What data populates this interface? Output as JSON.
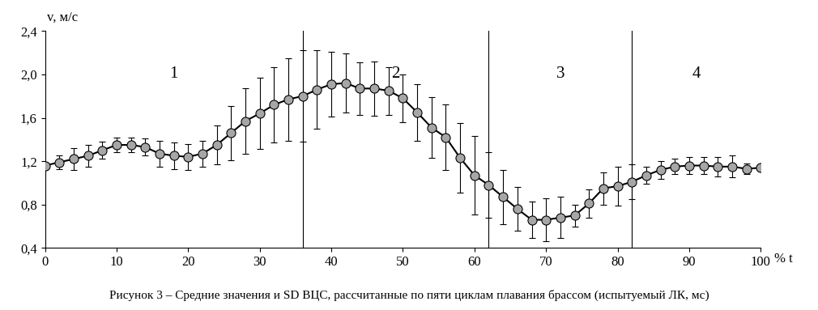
{
  "chart_data": {
    "type": "line",
    "caption": "Рисунок 3 – Средние значения и SD ВЦС, рассчитанные по пяти циклам плавания брассом (испытуемый ЛК, мс)",
    "y_label": "v, м/с",
    "x_label": "% t",
    "x": [
      0,
      2,
      4,
      6,
      8,
      10,
      12,
      14,
      16,
      18,
      20,
      22,
      24,
      26,
      28,
      30,
      32,
      34,
      36,
      38,
      40,
      42,
      44,
      46,
      48,
      50,
      52,
      54,
      56,
      58,
      60,
      62,
      64,
      66,
      68,
      70,
      72,
      74,
      76,
      78,
      80,
      82,
      84,
      86,
      88,
      90,
      92,
      94,
      96,
      98,
      100
    ],
    "values": [
      1.16,
      1.19,
      1.22,
      1.25,
      1.3,
      1.35,
      1.35,
      1.33,
      1.27,
      1.25,
      1.24,
      1.27,
      1.35,
      1.46,
      1.57,
      1.64,
      1.72,
      1.77,
      1.8,
      1.86,
      1.91,
      1.92,
      1.87,
      1.87,
      1.85,
      1.78,
      1.65,
      1.51,
      1.42,
      1.23,
      1.07,
      0.98,
      0.87,
      0.76,
      0.66,
      0.66,
      0.68,
      0.7,
      0.81,
      0.95,
      0.97,
      1.01,
      1.07,
      1.12,
      1.15,
      1.16,
      1.16,
      1.15,
      1.15,
      1.13,
      1.14
    ],
    "sd": [
      0.0,
      0.06,
      0.1,
      0.1,
      0.08,
      0.07,
      0.07,
      0.08,
      0.12,
      0.12,
      0.12,
      0.12,
      0.18,
      0.25,
      0.3,
      0.33,
      0.35,
      0.38,
      0.42,
      0.36,
      0.3,
      0.27,
      0.24,
      0.25,
      0.22,
      0.22,
      0.26,
      0.28,
      0.3,
      0.32,
      0.36,
      0.3,
      0.25,
      0.2,
      0.17,
      0.2,
      0.19,
      0.1,
      0.13,
      0.15,
      0.18,
      0.16,
      0.08,
      0.08,
      0.07,
      0.08,
      0.08,
      0.09,
      0.1,
      0.05,
      0.0
    ],
    "color": "#000000",
    "marker": "o",
    "phase_lines": [
      36,
      62,
      82
    ],
    "phase_labels": [
      "1",
      "2",
      "3",
      "4"
    ],
    "xlim": [
      0,
      100
    ],
    "xticks": [
      0,
      10,
      20,
      30,
      40,
      50,
      60,
      70,
      80,
      90,
      100
    ],
    "ylim": [
      0.4,
      2.4
    ],
    "yticks": [
      {
        "value": 0.4,
        "label": "0,4"
      },
      {
        "value": 0.8,
        "label": "0,8"
      },
      {
        "value": 1.2,
        "label": "1,2"
      },
      {
        "value": 1.6,
        "label": "1,6"
      },
      {
        "value": 2.0,
        "label": "2,0"
      },
      {
        "value": 2.4,
        "label": "2,4"
      }
    ],
    "grid": false
  }
}
